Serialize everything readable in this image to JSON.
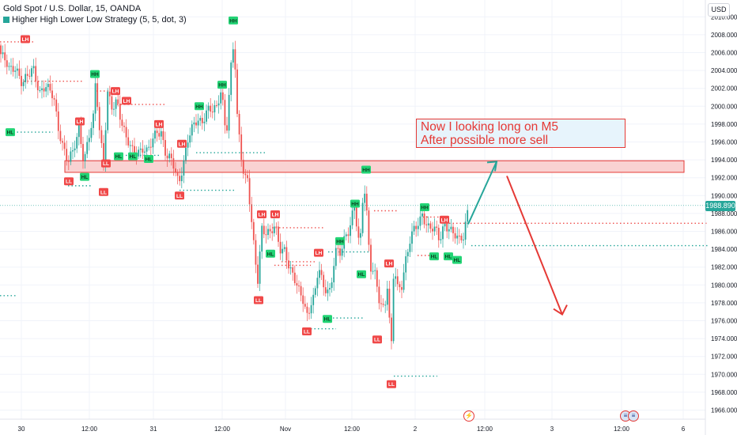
{
  "header": {
    "symbol_line": "Gold Spot / U.S. Dollar, 15, OANDA",
    "indicator_line": "Higher High Lower Low Strategy (5, 5, dot, 3)",
    "currency": "USD"
  },
  "annotation": {
    "line1": "Now I looking long on M5",
    "line2": "After possible more sell"
  },
  "price_label": "1988.890",
  "colors": {
    "up": "#26a69a",
    "down": "#ef5350",
    "zone_fill": "#f9d2d2",
    "zone_border": "#e53935",
    "arrow_up": "#26a69a",
    "arrow_down": "#e53935"
  },
  "icons": {
    "event": "flash-icon",
    "calendar_flags": "us-flag-icon"
  },
  "chart_data": {
    "type": "candlestick",
    "y_ticks": [
      "2010.000",
      "2008.000",
      "2006.000",
      "2004.000",
      "2002.000",
      "2000.000",
      "1998.000",
      "1996.000",
      "1994.000",
      "1992.000",
      "1990.000",
      "1988.000",
      "1986.000",
      "1984.000",
      "1982.000",
      "1980.000",
      "1978.000",
      "1976.000",
      "1974.000",
      "1972.000",
      "1970.000",
      "1968.000",
      "1966.000"
    ],
    "ylim": [
      1965.5,
      2010.8
    ],
    "x_ticks": [
      "30",
      "12:00",
      "31",
      "12:00",
      "Nov",
      "12:00",
      "2",
      "12:00",
      "3",
      "12:00",
      "6"
    ],
    "last_price": 1988.89,
    "resistance_zone": [
      1992.6,
      1993.9
    ],
    "swing_labels": [
      {
        "text": "LH",
        "price": 2007.5
      },
      {
        "text": "HH",
        "price": 2009.6
      },
      {
        "text": "HH",
        "price": 2003.6
      },
      {
        "text": "LH",
        "price": 2001.7
      },
      {
        "text": "LH",
        "price": 2000.6
      },
      {
        "text": "HH",
        "price": 2000.0
      },
      {
        "text": "HH",
        "price": 2002.4
      },
      {
        "text": "LH",
        "price": 1998.3
      },
      {
        "text": "LH",
        "price": 1998.0
      },
      {
        "text": "LH",
        "price": 1995.8
      },
      {
        "text": "HL",
        "price": 1997.1
      },
      {
        "text": "HL",
        "price": 1994.4
      },
      {
        "text": "HL",
        "price": 1994.4
      },
      {
        "text": "LL",
        "price": 1993.6
      },
      {
        "text": "HL",
        "price": 1994.1
      },
      {
        "text": "HL",
        "price": 1992.1
      },
      {
        "text": "LL",
        "price": 1991.6
      },
      {
        "text": "LL",
        "price": 1990.4
      },
      {
        "text": "LL",
        "price": 1990.0
      },
      {
        "text": "HH",
        "price": 1992.9
      },
      {
        "text": "HH",
        "price": 1989.1
      },
      {
        "text": "HH",
        "price": 1988.7
      },
      {
        "text": "LH",
        "price": 1987.9
      },
      {
        "text": "LH",
        "price": 1987.9
      },
      {
        "text": "LH",
        "price": 1987.3
      },
      {
        "text": "HH",
        "price": 1984.9
      },
      {
        "text": "HL",
        "price": 1983.5
      },
      {
        "text": "HL",
        "price": 1983.2
      },
      {
        "text": "HL",
        "price": 1983.2
      },
      {
        "text": "HL",
        "price": 1982.8
      },
      {
        "text": "HL",
        "price": 1981.2
      },
      {
        "text": "LH",
        "price": 1983.6
      },
      {
        "text": "LH",
        "price": 1982.4
      },
      {
        "text": "LL",
        "price": 1978.3
      },
      {
        "text": "HL",
        "price": 1976.2
      },
      {
        "text": "LL",
        "price": 1974.8
      },
      {
        "text": "LL",
        "price": 1973.9
      },
      {
        "text": "LL",
        "price": 1968.9
      }
    ],
    "levels": [
      {
        "price": 2007.2,
        "color": "#ef5350"
      },
      {
        "price": 2002.8,
        "color": "#ef5350"
      },
      {
        "price": 2001.7,
        "color": "#ef5350"
      },
      {
        "price": 2000.2,
        "color": "#ef5350"
      },
      {
        "price": 1997.1,
        "color": "#26a69a"
      },
      {
        "price": 1994.8,
        "color": "#26a69a"
      },
      {
        "price": 1994.5,
        "color": "#26a69a"
      },
      {
        "price": 1991.1,
        "color": "#26a69a"
      },
      {
        "price": 1990.6,
        "color": "#26a69a"
      },
      {
        "price": 1988.3,
        "color": "#ef5350"
      },
      {
        "price": 1987.6,
        "color": "#ef5350"
      },
      {
        "price": 1986.9,
        "color": "#ef5350"
      },
      {
        "price": 1986.4,
        "color": "#ef5350"
      },
      {
        "price": 1984.4,
        "color": "#26a69a"
      },
      {
        "price": 1983.7,
        "color": "#26a69a"
      },
      {
        "price": 1983.3,
        "color": "#ef5350"
      },
      {
        "price": 1982.6,
        "color": "#ef5350"
      },
      {
        "price": 1982.2,
        "color": "#ef5350"
      },
      {
        "price": 1978.8,
        "color": "#26a69a"
      },
      {
        "price": 1976.3,
        "color": "#26a69a"
      },
      {
        "price": 1975.1,
        "color": "#26a69a"
      },
      {
        "price": 1969.8,
        "color": "#26a69a"
      }
    ],
    "projection": {
      "up_leg": {
        "from_price": 1986.8,
        "to_price": 1993.8
      },
      "down_leg": {
        "from_price": 1992.2,
        "to_price": 1976.7
      }
    }
  }
}
